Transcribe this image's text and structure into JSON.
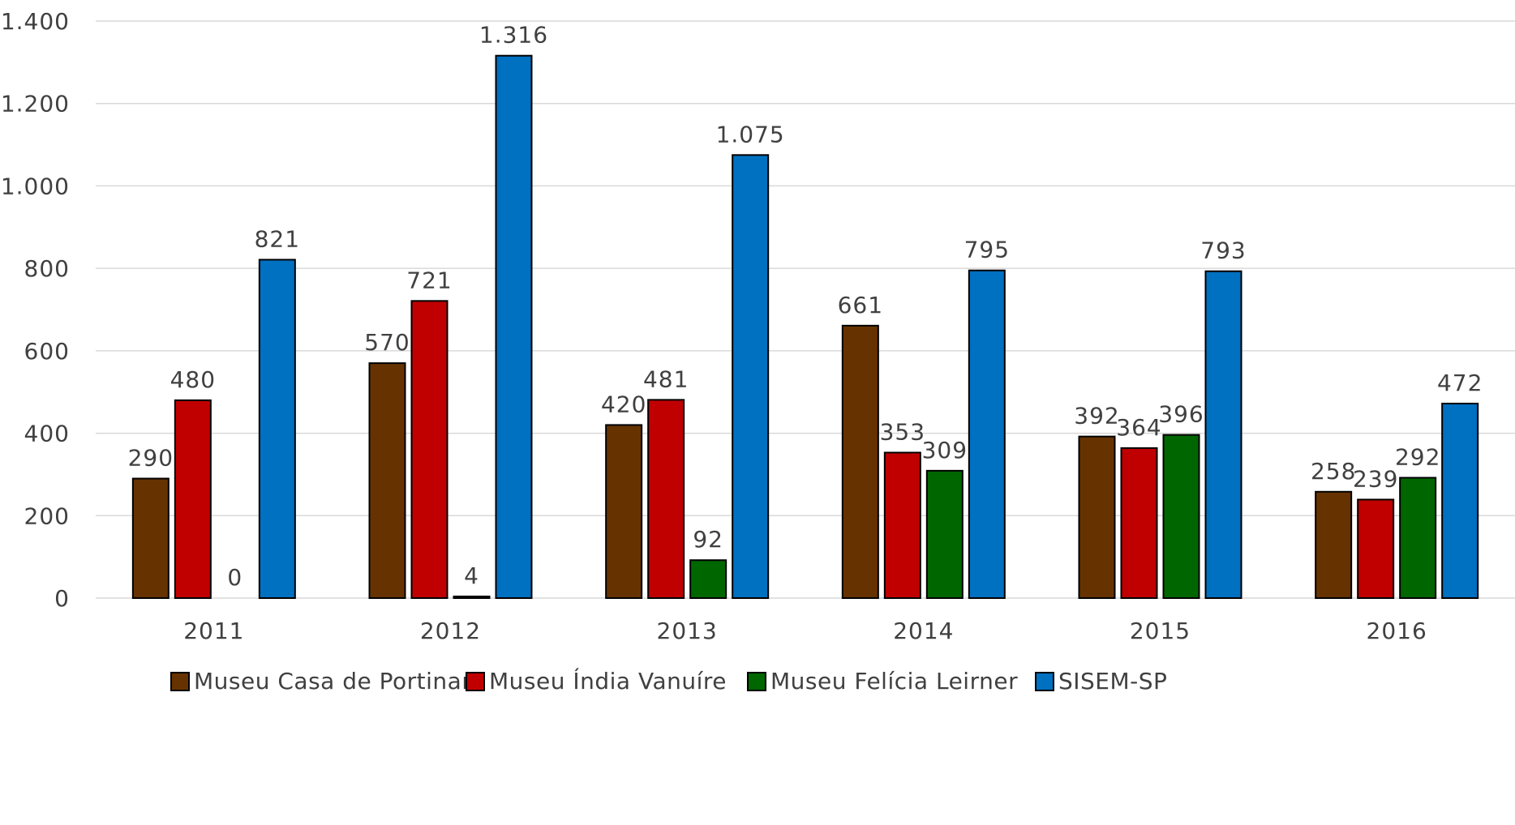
{
  "chart_data": {
    "type": "bar",
    "categories": [
      "2011",
      "2012",
      "2013",
      "2014",
      "2015",
      "2016"
    ],
    "series": [
      {
        "name": "Museu Casa de Portinari",
        "color": "#663300",
        "values": [
          290,
          570,
          420,
          661,
          392,
          258
        ],
        "labels": [
          "290",
          "570",
          "420",
          "661",
          "392",
          "258"
        ]
      },
      {
        "name": "Museu Índia Vanuíre",
        "color": "#c00000",
        "values": [
          480,
          721,
          481,
          353,
          364,
          239
        ],
        "labels": [
          "480",
          "721",
          "481",
          "353",
          "364",
          "239"
        ]
      },
      {
        "name": "Museu Felícia Leirner",
        "color": "#006600",
        "values": [
          0,
          4,
          92,
          309,
          396,
          292
        ],
        "labels": [
          "0",
          "4",
          "92",
          "309",
          "396",
          "292"
        ]
      },
      {
        "name": "SISEM-SP",
        "color": "#0070c0",
        "values": [
          821,
          1316,
          1075,
          795,
          793,
          472
        ],
        "labels": [
          "821",
          "1.316",
          "1.075",
          "795",
          "793",
          "472"
        ]
      }
    ],
    "yticks": [
      0,
      200,
      400,
      600,
      800,
      1000,
      1200,
      1400
    ],
    "ytick_labels": [
      "0",
      "200",
      "400",
      "600",
      "800",
      "1.000",
      "1.200",
      "1.400"
    ],
    "ylim": [
      0,
      1400
    ],
    "title": "",
    "xlabel": "",
    "ylabel": "",
    "grid": true,
    "legend_position": "bottom"
  }
}
